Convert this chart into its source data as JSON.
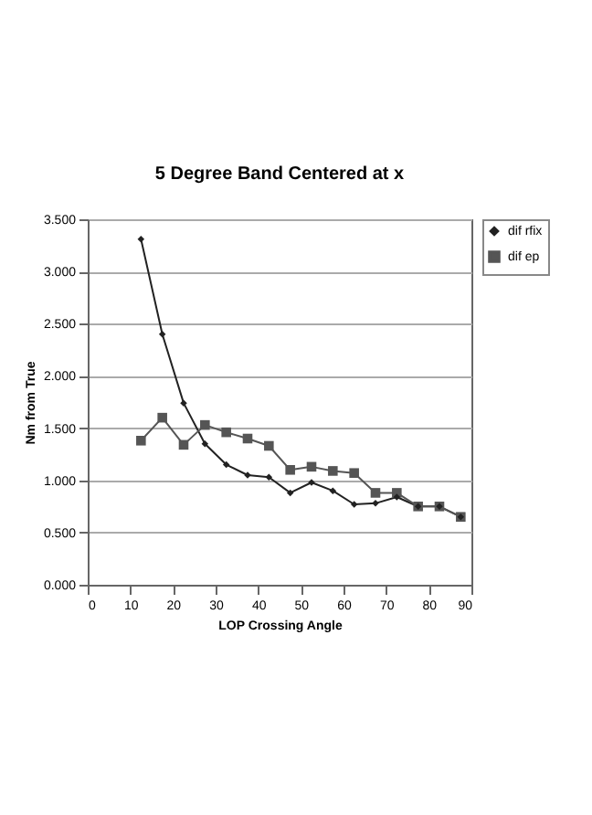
{
  "chart_data": {
    "type": "line",
    "title": "5 Degree Band Centered at x",
    "xlabel": "LOP Crossing Angle",
    "ylabel": "Nm from True",
    "x": [
      12.5,
      17.5,
      22.5,
      27.5,
      32.5,
      37.5,
      42.5,
      47.5,
      52.5,
      57.5,
      62.5,
      67.5,
      72.5,
      77.5,
      82.5,
      87.5
    ],
    "series": [
      {
        "name": "dif rfix",
        "color": "#222222",
        "marker": "diamond",
        "values": [
          3.31,
          2.4,
          1.74,
          1.35,
          1.15,
          1.05,
          1.03,
          0.88,
          0.98,
          0.9,
          0.77,
          0.78,
          0.84,
          0.75,
          0.75,
          0.65
        ]
      },
      {
        "name": "dif ep",
        "color": "#555555",
        "marker": "square",
        "values": [
          1.38,
          1.6,
          1.34,
          1.53,
          1.46,
          1.4,
          1.33,
          1.1,
          1.13,
          1.09,
          1.07,
          0.88,
          0.88,
          0.75,
          0.75,
          0.65
        ]
      }
    ],
    "xlim": [
      0,
      90
    ],
    "xticks": [
      0,
      10,
      20,
      30,
      40,
      50,
      60,
      70,
      80,
      90
    ],
    "ylim": [
      0,
      3.5
    ],
    "yticks": [
      {
        "value": 0,
        "label": "0.000"
      },
      {
        "value": 0.5,
        "label": "0.500"
      },
      {
        "value": 1,
        "label": "1.000"
      },
      {
        "value": 1.5,
        "label": "1.500"
      },
      {
        "value": 2,
        "label": "2.000"
      },
      {
        "value": 2.5,
        "label": "2.500"
      },
      {
        "value": 3,
        "label": "3.000"
      },
      {
        "value": 3.5,
        "label": "3.500"
      }
    ],
    "grid": "y",
    "legend": "right",
    "line_style": "solid"
  }
}
